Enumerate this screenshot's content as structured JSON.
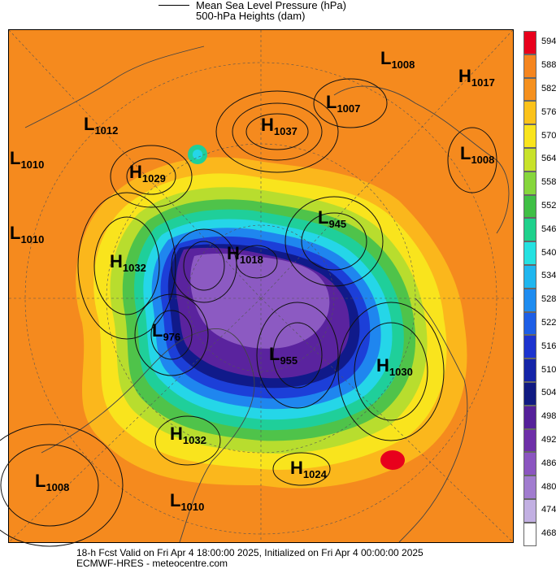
{
  "legend": {
    "line1": "Mean Sea Level Pressure (hPa)",
    "line2": "500-hPa Heights (dam)"
  },
  "colorbar": {
    "values": [
      "594",
      "588",
      "582",
      "576",
      "570",
      "564",
      "558",
      "552",
      "546",
      "540",
      "534",
      "528",
      "522",
      "516",
      "510",
      "504",
      "498",
      "492",
      "486",
      "480",
      "474",
      "468"
    ],
    "colors": [
      "#e8001c",
      "#f5851f",
      "#f5901e",
      "#fbc21a",
      "#f9e41d",
      "#c8e22a",
      "#86d63c",
      "#3fbf45",
      "#1fd18c",
      "#25e1e1",
      "#1fb6ef",
      "#1e8cf0",
      "#1d5ee6",
      "#1c33cf",
      "#1424a8",
      "#101a82",
      "#55209a",
      "#6e2fa8",
      "#8b55c0",
      "#a17ccf",
      "#c2b0e2",
      "#ffffff"
    ]
  },
  "centers": [
    {
      "type": "L",
      "value": "1008",
      "id": "l-1008-ne"
    },
    {
      "type": "H",
      "value": "1017",
      "id": "h-1017-ne"
    },
    {
      "type": "L",
      "value": "1007",
      "id": "l-1007"
    },
    {
      "type": "H",
      "value": "1037",
      "id": "h-1037"
    },
    {
      "type": "L",
      "value": "1012",
      "id": "l-1012"
    },
    {
      "type": "L",
      "value": "1010",
      "id": "l-1010-w1"
    },
    {
      "type": "H",
      "value": "1029",
      "id": "h-1029"
    },
    {
      "type": "L",
      "value": "1008",
      "id": "l-1008-e"
    },
    {
      "type": "L",
      "value": "1010",
      "id": "l-1010-w2"
    },
    {
      "type": "L",
      "value": "945",
      "id": "l-945"
    },
    {
      "type": "H",
      "value": "1032",
      "id": "h-1032-w"
    },
    {
      "type": "H",
      "value": "1018",
      "id": "h-1018"
    },
    {
      "type": "L",
      "value": "976",
      "id": "l-976"
    },
    {
      "type": "L",
      "value": "955",
      "id": "l-955"
    },
    {
      "type": "H",
      "value": "1030",
      "id": "h-1030"
    },
    {
      "type": "H",
      "value": "1032",
      "id": "h-1032-s"
    },
    {
      "type": "H",
      "value": "1024",
      "id": "h-1024"
    },
    {
      "type": "L",
      "value": "1008",
      "id": "l-1008-sw"
    },
    {
      "type": "L",
      "value": "1010",
      "id": "l-1010-s"
    }
  ],
  "footer": {
    "line1": "18-h Fcst Valid on Fri Apr  4 18:00:00 2025, Initialized on Fri Apr  4 00:00:00 2025",
    "line2": "ECMWF-HRES - meteocentre.com"
  }
}
